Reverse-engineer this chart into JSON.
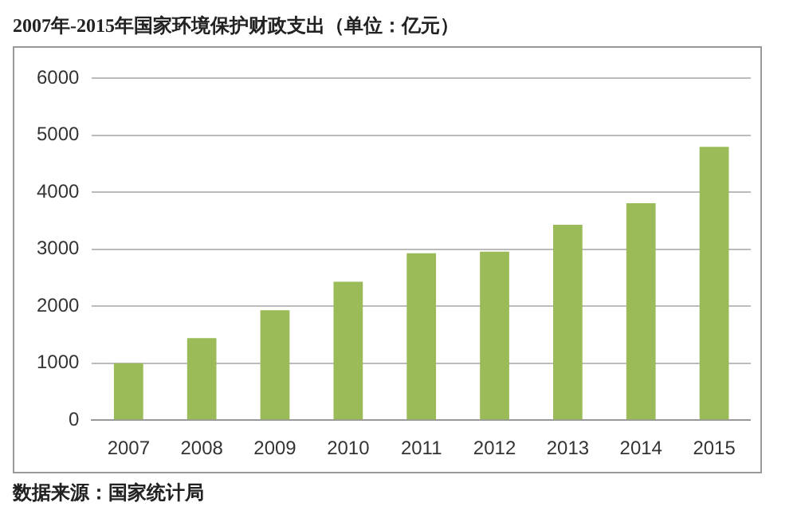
{
  "chart_data": {
    "type": "bar",
    "title": "2007年-2015年国家环境保护财政支出（单位：亿元）",
    "categories": [
      "2007",
      "2008",
      "2009",
      "2010",
      "2011",
      "2012",
      "2013",
      "2014",
      "2015"
    ],
    "values": [
      1000,
      1440,
      1930,
      2430,
      2930,
      2960,
      3430,
      3810,
      4800
    ],
    "color": "#9bbb59",
    "ylim": [
      0,
      6000
    ],
    "yticks": [
      0,
      1000,
      2000,
      3000,
      4000,
      5000,
      6000
    ],
    "grid": "y",
    "annotations": [
      "数据来源：国家统计局"
    ]
  }
}
